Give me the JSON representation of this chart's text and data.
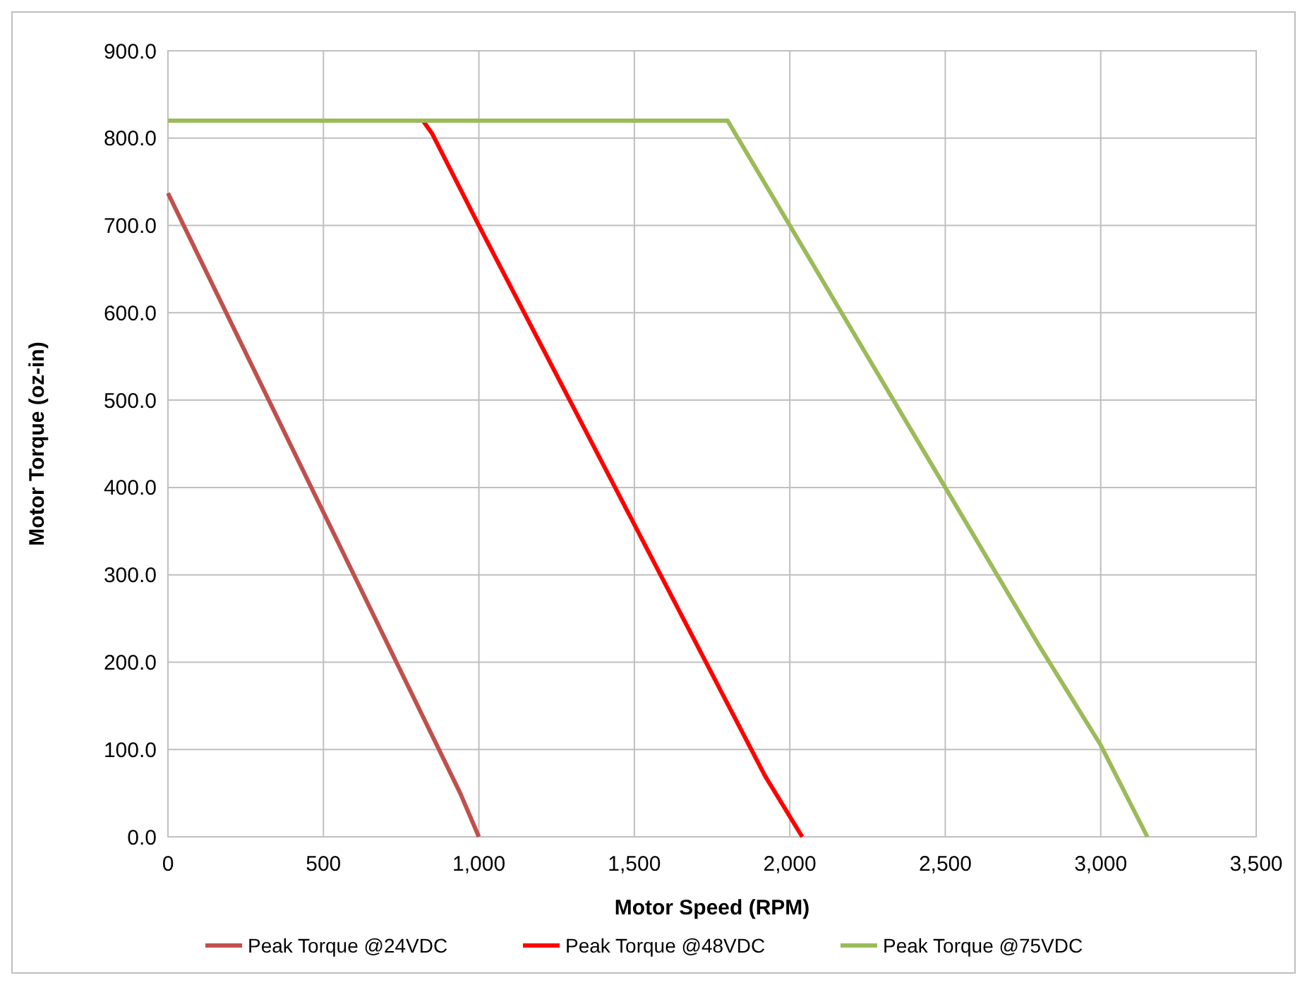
{
  "chart_data": {
    "type": "line",
    "xlabel": "Motor Speed (RPM)",
    "ylabel": "Motor Torque (oz-in)",
    "xlim": [
      0,
      3500
    ],
    "xticks": [
      {
        "value": 0,
        "label": "0"
      },
      {
        "value": 500,
        "label": "500"
      },
      {
        "value": 1000,
        "label": "1,000"
      },
      {
        "value": 1500,
        "label": "1,500"
      },
      {
        "value": 2000,
        "label": "2,000"
      },
      {
        "value": 2500,
        "label": "2,500"
      },
      {
        "value": 3000,
        "label": "3,000"
      },
      {
        "value": 3500,
        "label": "3,500"
      }
    ],
    "ylim": [
      0,
      900
    ],
    "yticks": [
      {
        "value": 0,
        "label": "0.0"
      },
      {
        "value": 100,
        "label": "100.0"
      },
      {
        "value": 200,
        "label": "200.0"
      },
      {
        "value": 300,
        "label": "300.0"
      },
      {
        "value": 400,
        "label": "400.0"
      },
      {
        "value": 500,
        "label": "500.0"
      },
      {
        "value": 600,
        "label": "600.0"
      },
      {
        "value": 700,
        "label": "700.0"
      },
      {
        "value": 800,
        "label": "800.0"
      },
      {
        "value": 900,
        "label": "900.0"
      }
    ],
    "grid": true,
    "legend": "bottom",
    "marker": "none",
    "line_style": "solid",
    "series": [
      {
        "name": "Peak Torque @24VDC",
        "color": "#c0504d",
        "x": [
          0,
          940,
          1000
        ],
        "values": [
          737,
          50,
          0
        ]
      },
      {
        "name": "Peak Torque @48VDC",
        "color": "#ff0000",
        "x": [
          820,
          850,
          1000,
          1920,
          2040
        ],
        "values": [
          820,
          805,
          700,
          70,
          0
        ]
      },
      {
        "name": "Peak Torque @75VDC",
        "color": "#9bbb59",
        "x": [
          0,
          1800,
          2000,
          2500,
          2800,
          3000,
          3150
        ],
        "values": [
          820,
          820,
          700,
          400,
          220,
          105,
          0
        ]
      }
    ]
  }
}
